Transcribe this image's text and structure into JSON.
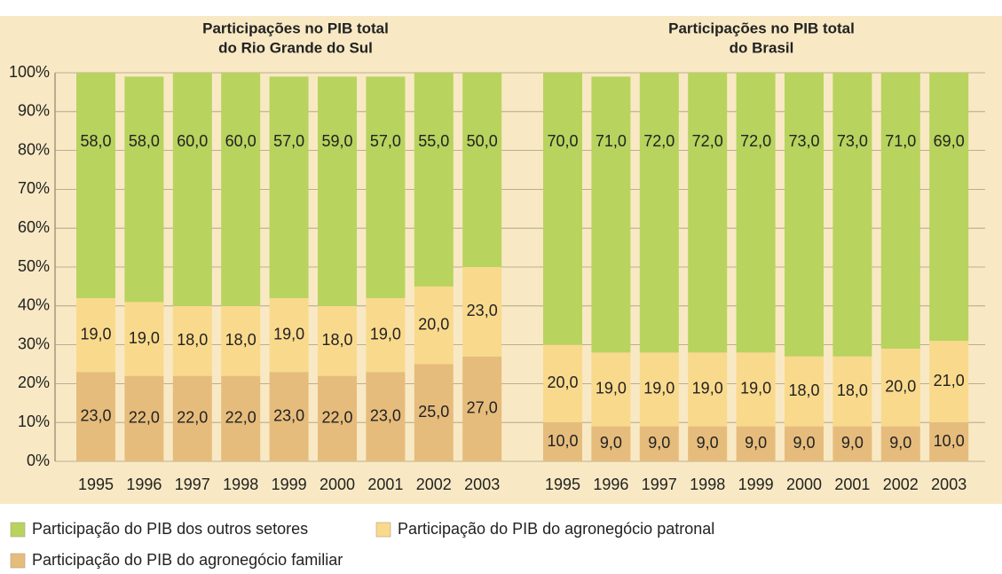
{
  "chart_data": [
    {
      "type": "bar",
      "stacked": true,
      "title": [
        "Participações no PIB total",
        "do Rio Grande do Sul"
      ],
      "categories": [
        "1995",
        "1996",
        "1997",
        "1998",
        "1999",
        "2000",
        "2001",
        "2002",
        "2003"
      ],
      "series": [
        {
          "name": "Participação do PIB do agronegócio familiar",
          "color": "#e6bc7c",
          "values": [
            23,
            22,
            22,
            22,
            23,
            22,
            23,
            25,
            27
          ],
          "value_labels": [
            "23,0",
            "22,0",
            "22,0",
            "22,0",
            "23,0",
            "22,0",
            "23,0",
            "25,0",
            "27,0"
          ]
        },
        {
          "name": "Participação do PIB do agronegócio patronal",
          "color": "#f9d98c",
          "values": [
            19,
            19,
            18,
            18,
            19,
            18,
            19,
            20,
            23
          ],
          "value_labels": [
            "19,0",
            "19,0",
            "18,0",
            "18,0",
            "19,0",
            "18,0",
            "19,0",
            "20,0",
            "23,0"
          ]
        },
        {
          "name": "Participação do PIB dos outros setores",
          "color": "#b8d35e",
          "values": [
            58,
            58,
            60,
            60,
            57,
            59,
            57,
            55,
            50
          ],
          "value_labels": [
            "58,0",
            "58,0",
            "60,0",
            "60,0",
            "57,0",
            "59,0",
            "57,0",
            "55,0",
            "50,0"
          ]
        }
      ],
      "ylim": [
        0,
        100
      ],
      "yticks": [
        {
          "value": 0,
          "label": "0%"
        },
        {
          "value": 10,
          "label": "10%"
        },
        {
          "value": 20,
          "label": "20%"
        },
        {
          "value": 30,
          "label": "30%"
        },
        {
          "value": 40,
          "label": "40%"
        },
        {
          "value": 50,
          "label": "50%"
        },
        {
          "value": 60,
          "label": "60%"
        },
        {
          "value": 70,
          "label": "70%"
        },
        {
          "value": 80,
          "label": "80%"
        },
        {
          "value": 90,
          "label": "90%"
        },
        {
          "value": 100,
          "label": "100%"
        }
      ],
      "grid": true
    },
    {
      "type": "bar",
      "stacked": true,
      "title": [
        "Participações no PIB total",
        "do Brasil"
      ],
      "categories": [
        "1995",
        "1996",
        "1997",
        "1998",
        "1999",
        "2000",
        "2001",
        "2002",
        "2003"
      ],
      "series": [
        {
          "color": "#e6bc7c",
          "values": [
            10,
            9,
            9,
            9,
            9,
            9,
            9,
            9,
            10
          ],
          "value_labels": [
            "10,0",
            "9,0",
            "9,0",
            "9,0",
            "9,0",
            "9,0",
            "9,0",
            "9,0",
            "10,0"
          ]
        },
        {
          "color": "#f9d98c",
          "values": [
            20,
            19,
            19,
            19,
            19,
            18,
            18,
            20,
            21
          ],
          "value_labels": [
            "20,0",
            "19,0",
            "19,0",
            "19,0",
            "19,0",
            "18,0",
            "18,0",
            "20,0",
            "21,0"
          ]
        },
        {
          "color": "#b8d35e",
          "values": [
            70,
            71,
            72,
            72,
            72,
            73,
            73,
            71,
            69
          ],
          "value_labels": [
            "70,0",
            "71,0",
            "72,0",
            "72,0",
            "72,0",
            "73,0",
            "73,0",
            "71,0",
            "69,0"
          ]
        }
      ],
      "ylim": [
        0,
        100
      ],
      "yticks": [
        0,
        10,
        20,
        30,
        40,
        50,
        60,
        70,
        80,
        90,
        100
      ],
      "grid": true
    }
  ]
}
